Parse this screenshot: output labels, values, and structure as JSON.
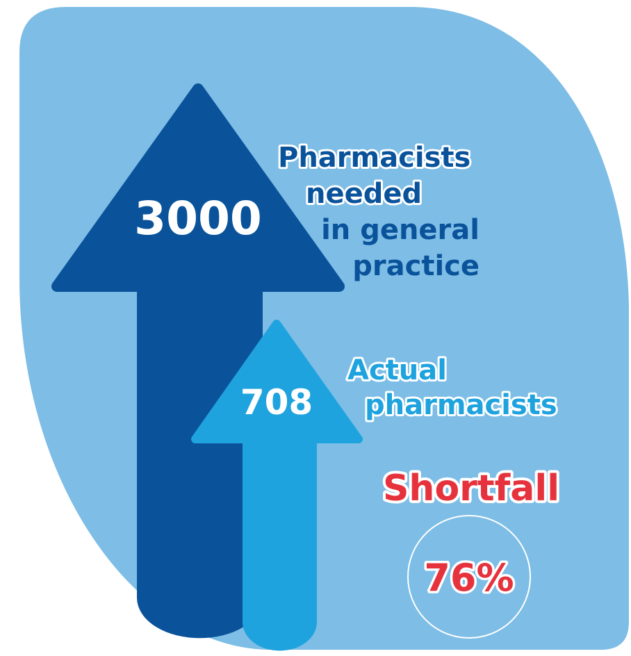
{
  "needed": {
    "number": "3000",
    "lines": [
      "Pharmacists",
      "needed",
      "in general",
      "practice"
    ]
  },
  "actual": {
    "number": "708",
    "lines": [
      "Actual",
      "pharmacists"
    ]
  },
  "shortfall": {
    "title": "Shortfall",
    "percent": "76%"
  }
}
